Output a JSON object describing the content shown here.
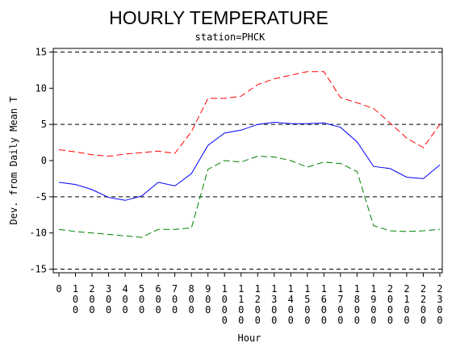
{
  "chart_data": {
    "type": "line",
    "title": "HOURLY TEMPERATURE",
    "subtitle": "station=PHCK",
    "xlabel": "Hour",
    "ylabel": "Dev. from Daily Mean T",
    "x": [
      0,
      100,
      200,
      300,
      400,
      500,
      600,
      700,
      800,
      900,
      1000,
      1100,
      1200,
      1300,
      1400,
      1500,
      1600,
      1700,
      1800,
      1900,
      2000,
      2100,
      2200,
      2300
    ],
    "x_tick_labels": [
      "0",
      "100",
      "200",
      "300",
      "400",
      "500",
      "600",
      "700",
      "800",
      "900",
      "1000",
      "1100",
      "1200",
      "1300",
      "1400",
      "1500",
      "1600",
      "1700",
      "1800",
      "1900",
      "2000",
      "2100",
      "2200",
      "2300"
    ],
    "y_ticks": [
      -15,
      -10,
      -5,
      0,
      5,
      10,
      15
    ],
    "y_tick_labels": [
      "-15",
      "-10",
      "-5",
      "0",
      "5",
      "10",
      "15"
    ],
    "xlim": [
      0,
      2300
    ],
    "ylim": [
      -15.5,
      15.5
    ],
    "reference_lines": [
      -15,
      -5,
      5,
      15
    ],
    "series": [
      {
        "color": "#ff0000",
        "dash": "dashed",
        "values": [
          1.5,
          1.2,
          0.8,
          0.6,
          0.9,
          1.1,
          1.3,
          1.0,
          4.0,
          8.6,
          8.6,
          8.9,
          10.5,
          11.3,
          11.8,
          12.3,
          12.3,
          8.7,
          8.0,
          7.2,
          5.2,
          3.1,
          1.8,
          5.0
        ]
      },
      {
        "color": "#0000ff",
        "dash": "solid",
        "values": [
          -3.0,
          -3.3,
          -4.0,
          -5.1,
          -5.5,
          -4.9,
          -3.0,
          -3.5,
          -1.8,
          2.1,
          3.8,
          4.2,
          5.0,
          5.3,
          5.1,
          5.1,
          5.2,
          4.6,
          2.6,
          -0.8,
          -1.1,
          -2.3,
          -2.5,
          -0.6
        ]
      },
      {
        "color": "#008000",
        "dash": "dashed",
        "values": [
          -9.5,
          -9.8,
          -10.0,
          -10.2,
          -10.4,
          -10.6,
          -9.5,
          -9.5,
          -9.3,
          -1.2,
          0.0,
          -0.2,
          0.6,
          0.5,
          0.0,
          -0.9,
          -0.2,
          -0.4,
          -1.5,
          -9.0,
          -9.7,
          -9.8,
          -9.7,
          -9.5
        ]
      }
    ]
  }
}
